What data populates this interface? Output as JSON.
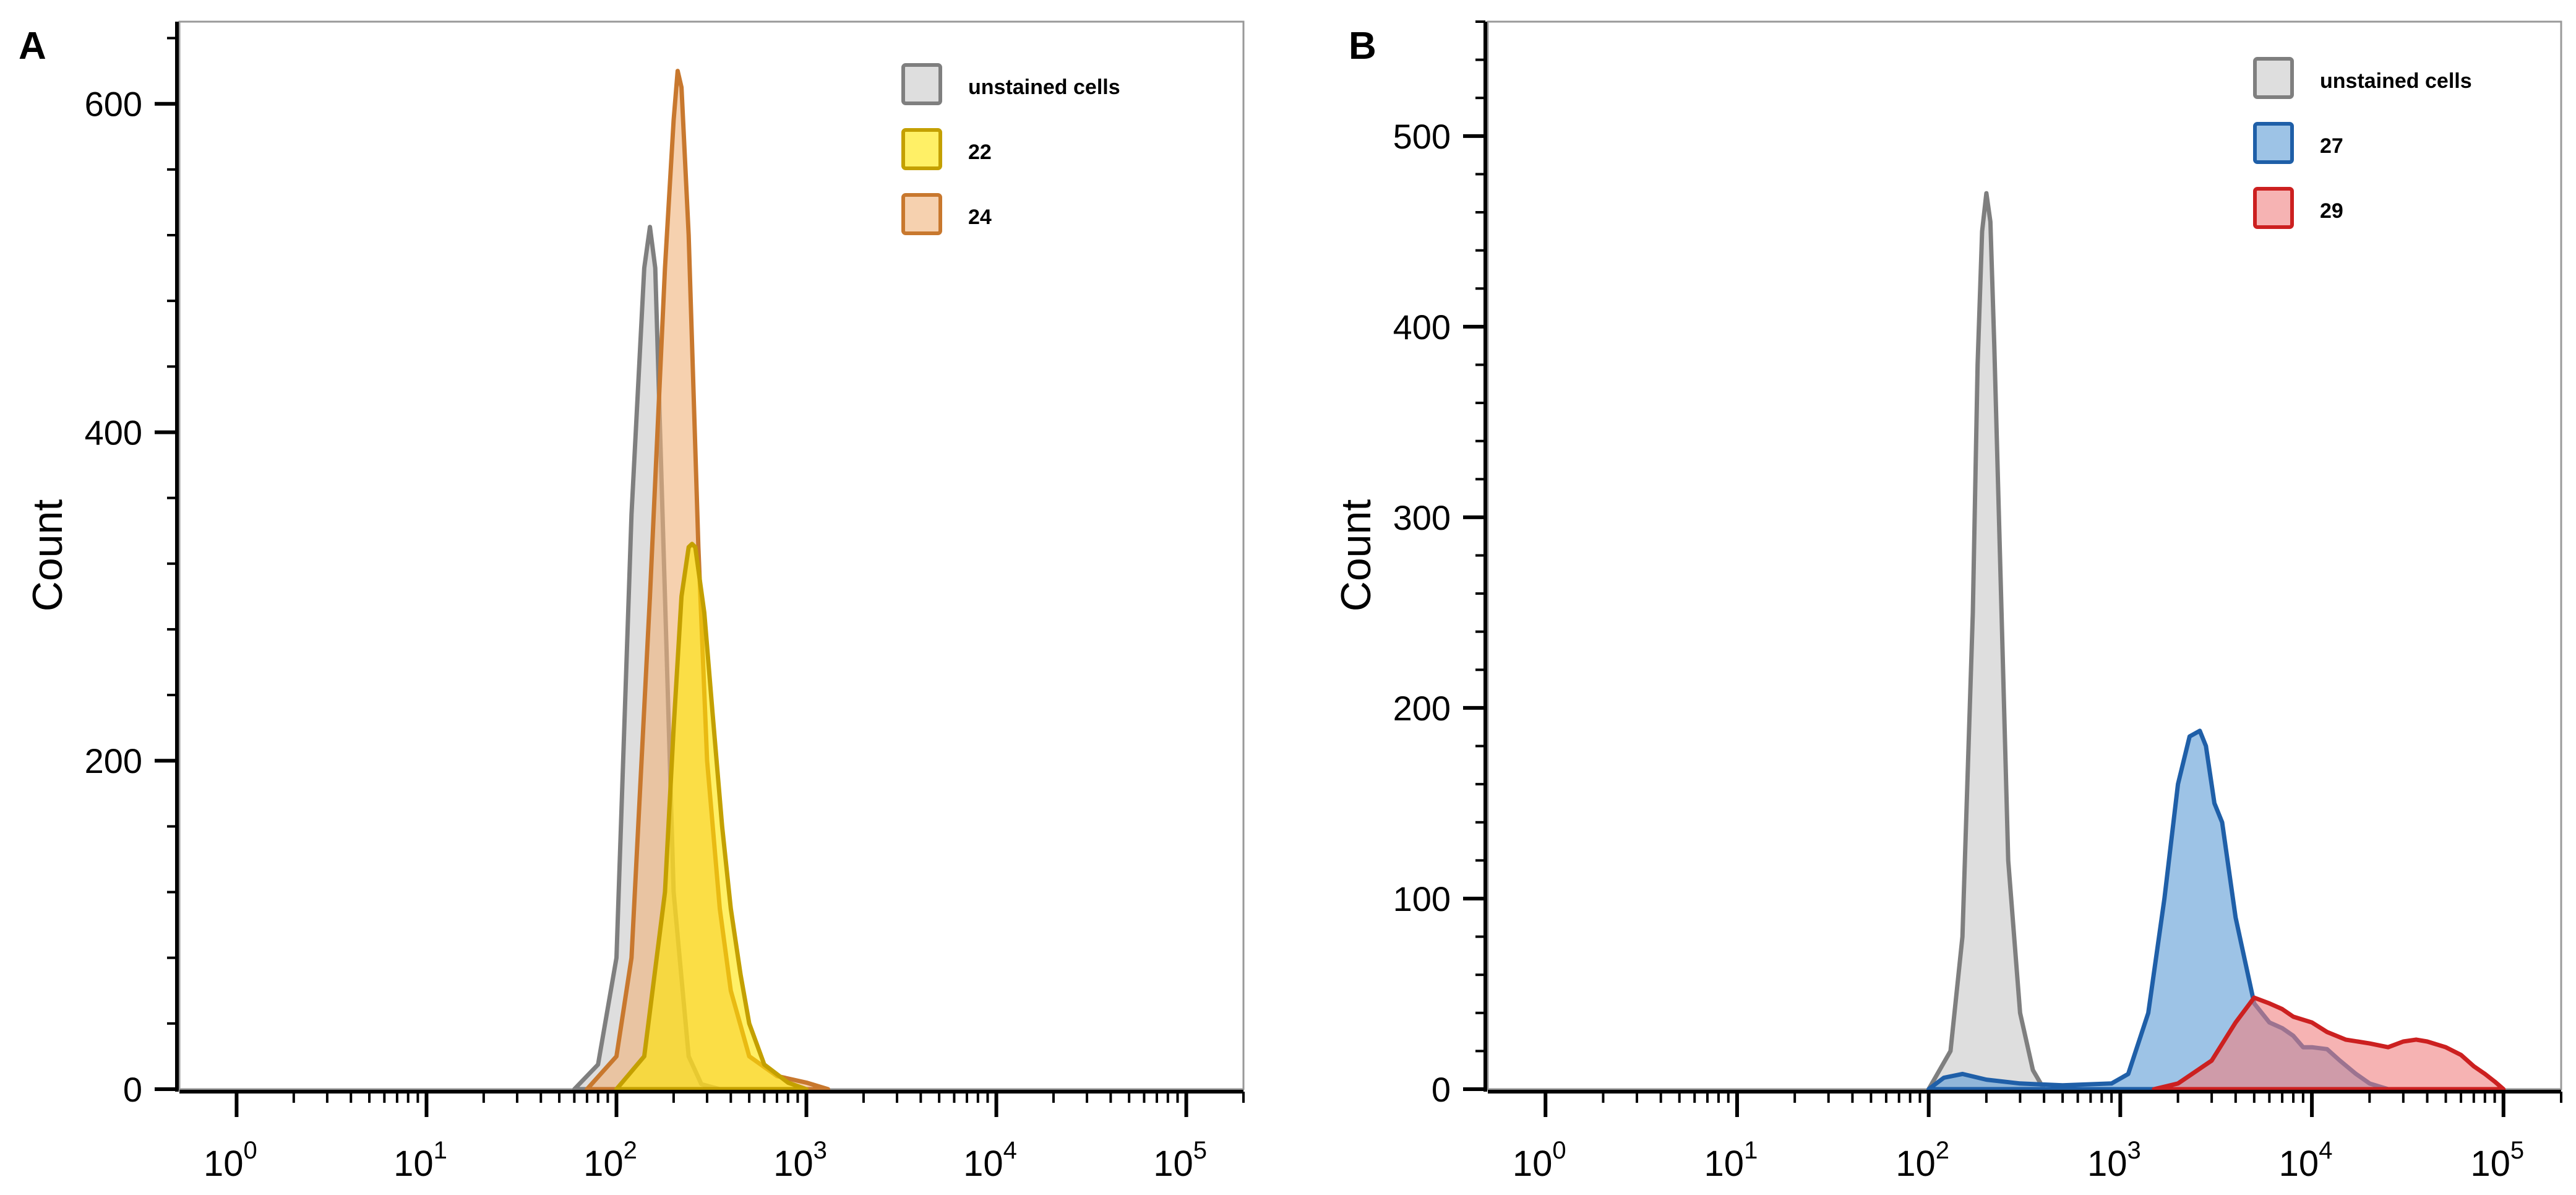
{
  "chart_data": [
    {
      "type": "area",
      "panel_label": "A",
      "title": "",
      "xlabel": "",
      "ylabel": "Count",
      "x_scale": "log10",
      "xlim": [
        0.5,
        200000
      ],
      "ylim": [
        0,
        650
      ],
      "grid": false,
      "legend_position": "top-right",
      "x_ticks": [
        {
          "base": "10",
          "exp": "0",
          "value": 1
        },
        {
          "base": "10",
          "exp": "1",
          "value": 10
        },
        {
          "base": "10",
          "exp": "2",
          "value": 100
        },
        {
          "base": "10",
          "exp": "3",
          "value": 1000
        },
        {
          "base": "10",
          "exp": "4",
          "value": 10000
        },
        {
          "base": "10",
          "exp": "5",
          "value": 100000
        }
      ],
      "y_ticks": [
        {
          "label": "0",
          "value": 0
        },
        {
          "label": "200",
          "value": 200
        },
        {
          "label": "400",
          "value": 400
        },
        {
          "label": "600",
          "value": 600
        }
      ],
      "series": [
        {
          "name": "unstained cells",
          "fill": "#c8c8c8",
          "stroke": "#7f7f7f",
          "x": [
            60,
            80,
            100,
            120,
            140,
            150,
            160,
            180,
            200,
            240,
            280,
            350
          ],
          "values": [
            0,
            15,
            80,
            350,
            500,
            525,
            500,
            300,
            120,
            20,
            3,
            0
          ]
        },
        {
          "name": "24",
          "fill": "#f0b27a",
          "stroke": "#c8782e",
          "x": [
            70,
            100,
            120,
            150,
            180,
            200,
            210,
            220,
            240,
            270,
            300,
            350,
            400,
            500,
            700,
            1000,
            1300
          ],
          "values": [
            0,
            20,
            80,
            300,
            500,
            590,
            620,
            610,
            520,
            330,
            200,
            110,
            60,
            20,
            8,
            4,
            0
          ]
        },
        {
          "name": "22",
          "fill": "#ffe600",
          "stroke": "#c4a000",
          "x": [
            100,
            140,
            180,
            200,
            220,
            240,
            250,
            260,
            290,
            320,
            360,
            400,
            450,
            500,
            600,
            800,
            1000
          ],
          "values": [
            0,
            20,
            120,
            220,
            300,
            330,
            332,
            330,
            290,
            230,
            160,
            110,
            70,
            40,
            15,
            4,
            0
          ]
        }
      ]
    },
    {
      "type": "area",
      "panel_label": "B",
      "title": "",
      "xlabel": "",
      "ylabel": "Count",
      "x_scale": "log10",
      "xlim": [
        0.5,
        200000
      ],
      "ylim": [
        0,
        560
      ],
      "grid": false,
      "legend_position": "top-right",
      "x_ticks": [
        {
          "base": "10",
          "exp": "0",
          "value": 1
        },
        {
          "base": "10",
          "exp": "1",
          "value": 10
        },
        {
          "base": "10",
          "exp": "2",
          "value": 100
        },
        {
          "base": "10",
          "exp": "3",
          "value": 1000
        },
        {
          "base": "10",
          "exp": "4",
          "value": 10000
        },
        {
          "base": "10",
          "exp": "5",
          "value": 100000
        }
      ],
      "y_ticks": [
        {
          "label": "0",
          "value": 0
        },
        {
          "label": "100",
          "value": 100
        },
        {
          "label": "200",
          "value": 200
        },
        {
          "label": "300",
          "value": 300
        },
        {
          "label": "400",
          "value": 400
        },
        {
          "label": "500",
          "value": 500
        }
      ],
      "series": [
        {
          "name": "unstained cells",
          "fill": "#c8c8c8",
          "stroke": "#7f7f7f",
          "x": [
            100,
            130,
            150,
            170,
            180,
            190,
            200,
            210,
            220,
            240,
            260,
            300,
            350,
            400
          ],
          "values": [
            0,
            20,
            80,
            250,
            380,
            450,
            470,
            455,
            390,
            250,
            120,
            40,
            10,
            0
          ]
        },
        {
          "name": "27",
          "fill": "#5b9bd5",
          "stroke": "#1f5fa8",
          "x": [
            100,
            120,
            150,
            200,
            300,
            500,
            900,
            1100,
            1400,
            1700,
            2000,
            2300,
            2600,
            2800,
            3100,
            3400,
            4000,
            5000,
            6000,
            7000,
            8000,
            9000,
            10000,
            12000,
            14000,
            17000,
            20000,
            25000
          ],
          "values": [
            0,
            6,
            8,
            5,
            3,
            2,
            3,
            8,
            40,
            100,
            160,
            185,
            188,
            180,
            150,
            140,
            90,
            45,
            35,
            32,
            28,
            22,
            22,
            21,
            15,
            8,
            3,
            0
          ]
        },
        {
          "name": "29",
          "fill": "#f08080",
          "stroke": "#cc2020",
          "x": [
            1500,
            2000,
            3000,
            4000,
            5000,
            6000,
            7000,
            8000,
            10000,
            12000,
            15000,
            20000,
            25000,
            30000,
            35000,
            40000,
            50000,
            60000,
            70000,
            80000,
            90000,
            100000
          ],
          "values": [
            0,
            3,
            15,
            35,
            48,
            45,
            42,
            38,
            35,
            30,
            26,
            24,
            22,
            25,
            26,
            25,
            22,
            18,
            12,
            8,
            4,
            0
          ]
        }
      ]
    }
  ]
}
